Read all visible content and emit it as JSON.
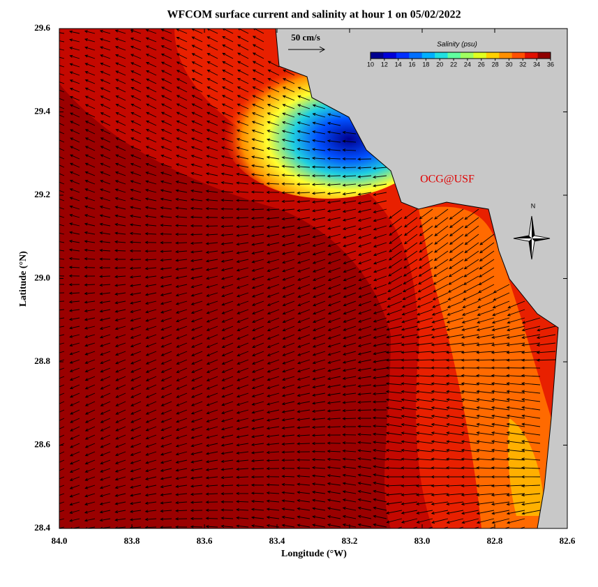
{
  "map": {
    "title": "WFCOM surface current and salinity at hour 1 on 05/02/2022",
    "xlabel": "Longitude (°W)",
    "ylabel": "Latitude (°N)",
    "xlim": [
      84.0,
      82.6
    ],
    "xticks": [
      {
        "value": 84.0,
        "label": "84.0"
      },
      {
        "value": 83.8,
        "label": "83.8"
      },
      {
        "value": 83.6,
        "label": "83.6"
      },
      {
        "value": 83.4,
        "label": "83.4"
      },
      {
        "value": 83.2,
        "label": "83.2"
      },
      {
        "value": 83.0,
        "label": "83.0"
      },
      {
        "value": 82.8,
        "label": "82.8"
      },
      {
        "value": 82.6,
        "label": "82.6"
      }
    ],
    "ylim": [
      28.4,
      29.6
    ],
    "yticks": [
      {
        "value": 28.4,
        "label": "28.4"
      },
      {
        "value": 28.6,
        "label": "28.6"
      },
      {
        "value": 28.8,
        "label": "28.8"
      },
      {
        "value": 29.0,
        "label": "29.0"
      },
      {
        "value": 29.2,
        "label": "29.2"
      },
      {
        "value": 29.4,
        "label": "29.4"
      },
      {
        "value": 29.6,
        "label": "29.6"
      }
    ],
    "colorbar": {
      "label": "Salinity (psu)",
      "lim": [
        10,
        36
      ],
      "ticks": [
        10,
        12,
        14,
        16,
        18,
        20,
        22,
        24,
        26,
        28,
        30,
        32,
        34,
        36
      ],
      "colors": [
        "#00008f",
        "#0000d8",
        "#0030ff",
        "#0070ff",
        "#00b0ff",
        "#20e0e0",
        "#60ffa0",
        "#a0ff60",
        "#e0ff20",
        "#ffd000",
        "#ff9000",
        "#ff5000",
        "#e01000",
        "#8f0000"
      ]
    },
    "scale_label": "50 cm/s",
    "credit": "OCG@USF",
    "north": "N"
  }
}
